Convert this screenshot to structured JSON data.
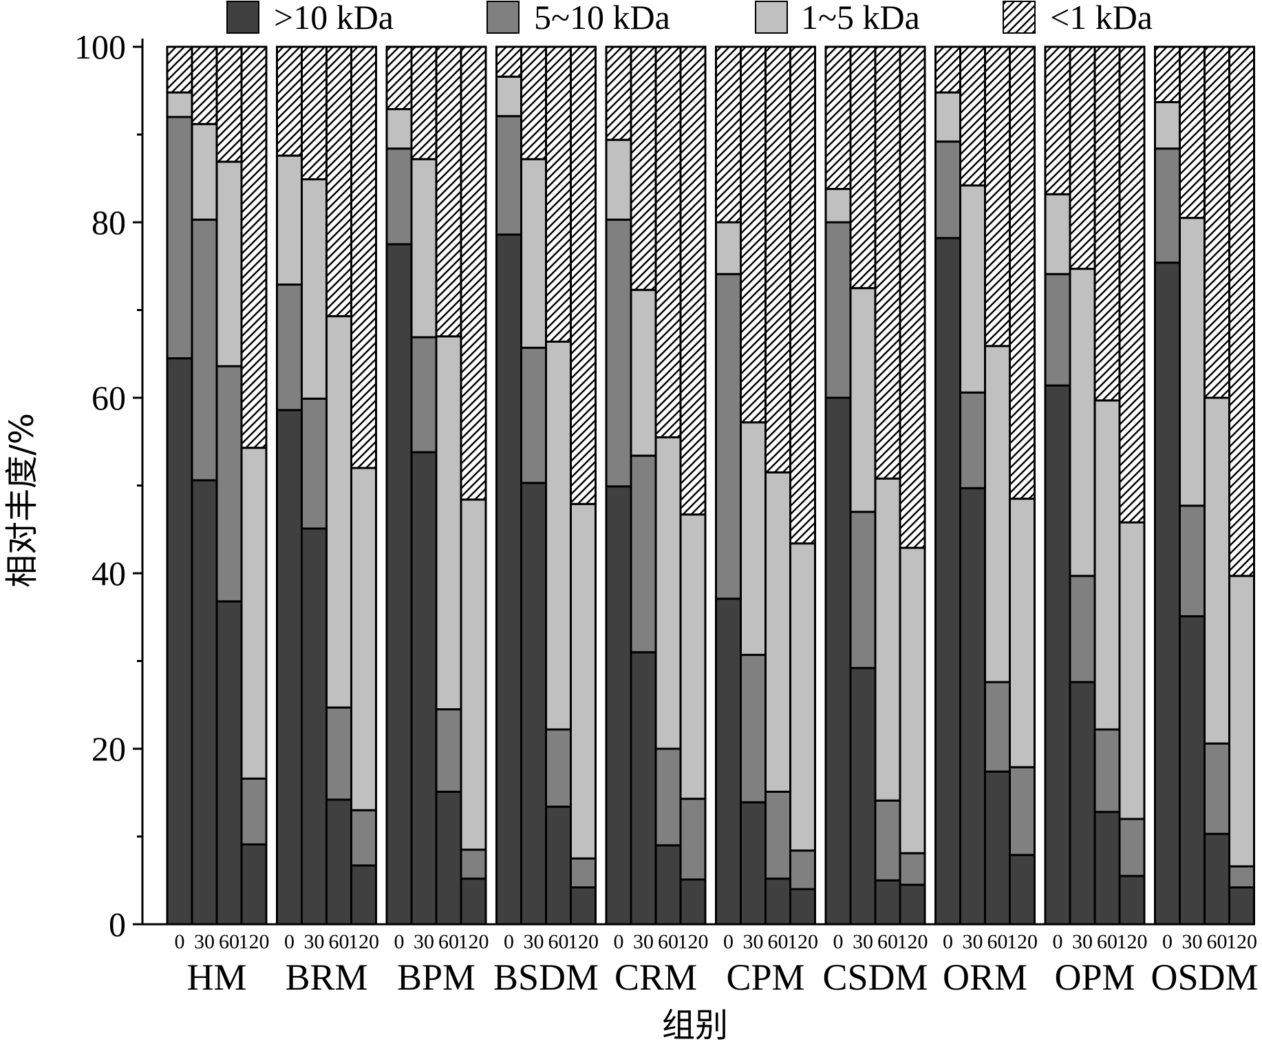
{
  "chart_data": {
    "type": "bar",
    "stacked": true,
    "ylabel": "相对丰度/%",
    "xlabel": "组别",
    "ylim": [
      0,
      100
    ],
    "yticks": [
      "0",
      "20",
      "40",
      "60",
      "80",
      "100"
    ],
    "legend_position": "top",
    "time_labels": [
      "0",
      "30",
      "60",
      "120"
    ],
    "series": [
      {
        "name": ">10 kDa",
        "color": "#404040",
        "pattern": "solid"
      },
      {
        "name": "5~10 kDa",
        "color": "#808080",
        "pattern": "solid"
      },
      {
        "name": "1~5 kDa",
        "color": "#c0c0c0",
        "pattern": "solid"
      },
      {
        "name": "<1 kDa",
        "color": "#ffffff",
        "pattern": "hatch"
      }
    ],
    "groups": [
      {
        "name": "HM",
        "values": [
          [
            64.5,
            27.5,
            2.8,
            5.2
          ],
          [
            50.6,
            29.7,
            10.9,
            8.8
          ],
          [
            36.8,
            26.8,
            23.3,
            13.1
          ],
          [
            9.1,
            7.5,
            37.7,
            45.7
          ]
        ]
      },
      {
        "name": "BRM",
        "values": [
          [
            58.6,
            14.3,
            14.7,
            12.4
          ],
          [
            45.1,
            14.8,
            25.0,
            15.1
          ],
          [
            14.2,
            10.5,
            44.6,
            30.7
          ],
          [
            6.7,
            6.3,
            39.0,
            48.0
          ]
        ]
      },
      {
        "name": "BPM",
        "values": [
          [
            77.5,
            10.9,
            4.5,
            7.1
          ],
          [
            53.8,
            13.1,
            20.3,
            12.8
          ],
          [
            15.1,
            9.4,
            42.5,
            33.0
          ],
          [
            5.2,
            3.3,
            39.9,
            51.6
          ]
        ]
      },
      {
        "name": "BSDM",
        "values": [
          [
            78.6,
            13.5,
            4.5,
            3.4
          ],
          [
            50.3,
            15.4,
            21.5,
            12.8
          ],
          [
            13.4,
            8.8,
            44.2,
            33.6
          ],
          [
            4.2,
            3.3,
            40.4,
            52.1
          ]
        ]
      },
      {
        "name": "CRM",
        "values": [
          [
            49.9,
            30.4,
            9.1,
            10.6
          ],
          [
            31.0,
            22.4,
            18.9,
            27.7
          ],
          [
            9.0,
            11.0,
            35.5,
            44.5
          ],
          [
            5.1,
            9.2,
            32.4,
            53.3
          ]
        ]
      },
      {
        "name": "CPM",
        "values": [
          [
            37.1,
            37.0,
            5.9,
            20.0
          ],
          [
            13.9,
            16.8,
            26.5,
            42.8
          ],
          [
            5.2,
            9.9,
            36.4,
            48.5
          ],
          [
            4.0,
            4.4,
            35.0,
            56.6
          ]
        ]
      },
      {
        "name": "CSDM",
        "values": [
          [
            60.0,
            20.0,
            3.8,
            16.2
          ],
          [
            29.2,
            17.8,
            25.5,
            27.5
          ],
          [
            5.0,
            9.1,
            36.7,
            49.2
          ],
          [
            4.5,
            3.6,
            34.8,
            57.1
          ]
        ]
      },
      {
        "name": "ORM",
        "values": [
          [
            78.2,
            11.0,
            5.6,
            5.2
          ],
          [
            49.7,
            10.9,
            23.6,
            15.8
          ],
          [
            17.4,
            10.2,
            38.3,
            34.1
          ],
          [
            7.9,
            10.0,
            30.6,
            51.5
          ]
        ]
      },
      {
        "name": "OPM",
        "values": [
          [
            61.4,
            12.7,
            9.1,
            16.8
          ],
          [
            27.6,
            12.1,
            35.0,
            25.3
          ],
          [
            12.8,
            9.4,
            37.5,
            40.3
          ],
          [
            5.5,
            6.5,
            33.8,
            54.2
          ]
        ]
      },
      {
        "name": "OSDM",
        "values": [
          [
            75.4,
            13.0,
            5.3,
            6.3
          ],
          [
            35.1,
            12.6,
            32.8,
            19.5
          ],
          [
            10.3,
            10.3,
            39.4,
            40.0
          ],
          [
            4.2,
            2.4,
            33.1,
            60.3
          ]
        ]
      }
    ]
  }
}
